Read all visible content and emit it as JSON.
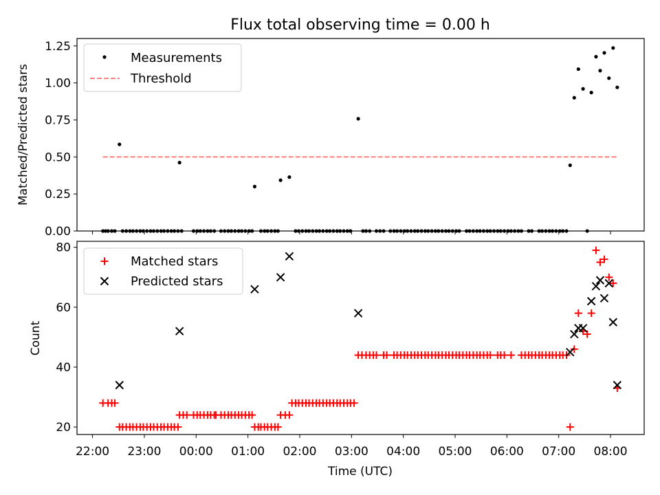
{
  "figure": {
    "title": "Flux total observing time = 0.00 h"
  },
  "chart_data": [
    {
      "type": "scatter",
      "panel": "top",
      "ylabel": "Matched/Predicted stars",
      "ylim": [
        0.0,
        1.3
      ],
      "yticks": [
        "0.00",
        "0.25",
        "0.50",
        "0.75",
        "1.00",
        "1.25"
      ],
      "grid": false,
      "legend_position": "top-left",
      "threshold": {
        "name": "Threshold",
        "y": 0.5,
        "x_start": 22.2,
        "x_end": 32.15,
        "color": "#ff7f7f",
        "style": "dashed"
      },
      "series": [
        {
          "name": "Measurements",
          "marker": "dot",
          "color": "#000000",
          "x_zero": [
            22.2,
            22.25,
            22.3,
            22.37,
            22.43,
            22.58,
            22.65,
            22.72,
            22.78,
            22.85,
            22.92,
            22.98,
            23.05,
            23.12,
            23.18,
            23.25,
            23.32,
            23.38,
            23.45,
            23.52,
            23.58,
            23.65,
            23.72,
            23.95,
            24.02,
            24.08,
            24.15,
            24.22,
            24.28,
            24.35,
            24.48,
            24.55,
            24.62,
            24.68,
            24.75,
            24.82,
            24.88,
            24.95,
            25.02,
            25.08,
            25.25,
            25.32,
            25.38,
            25.45,
            25.52,
            25.58,
            25.92,
            25.98,
            26.05,
            26.12,
            26.18,
            26.25,
            26.32,
            26.38,
            26.45,
            26.52,
            26.58,
            26.65,
            26.72,
            26.78,
            26.85,
            26.92,
            26.98,
            27.22,
            27.28,
            27.35,
            27.48,
            27.55,
            27.62,
            27.75,
            27.82,
            27.88,
            27.95,
            28.02,
            28.08,
            28.15,
            28.22,
            28.28,
            28.35,
            28.42,
            28.48,
            28.55,
            28.62,
            28.68,
            28.75,
            28.82,
            28.88,
            28.95,
            29.02,
            29.08,
            29.22,
            29.28,
            29.35,
            29.42,
            29.48,
            29.55,
            29.62,
            29.68,
            29.75,
            29.82,
            29.88,
            29.95,
            30.02,
            30.08,
            30.15,
            30.22,
            30.28,
            30.42,
            30.48,
            30.62,
            30.68,
            30.75,
            30.82,
            30.88,
            30.95,
            31.02,
            31.08,
            31.15,
            31.55
          ],
          "points": [
            {
              "x": 22.52,
              "y": 0.585
            },
            {
              "x": 23.68,
              "y": 0.462
            },
            {
              "x": 25.13,
              "y": 0.3
            },
            {
              "x": 25.63,
              "y": 0.343
            },
            {
              "x": 25.8,
              "y": 0.364
            },
            {
              "x": 27.13,
              "y": 0.758
            },
            {
              "x": 31.22,
              "y": 0.444
            },
            {
              "x": 31.3,
              "y": 0.9
            },
            {
              "x": 31.38,
              "y": 1.093
            },
            {
              "x": 31.47,
              "y": 0.96
            },
            {
              "x": 31.63,
              "y": 0.935
            },
            {
              "x": 31.72,
              "y": 1.177
            },
            {
              "x": 31.8,
              "y": 1.083
            },
            {
              "x": 31.88,
              "y": 1.203
            },
            {
              "x": 31.97,
              "y": 1.032
            },
            {
              "x": 32.05,
              "y": 1.236
            },
            {
              "x": 32.13,
              "y": 0.97
            }
          ]
        }
      ]
    },
    {
      "type": "scatter",
      "panel": "bottom",
      "xlabel": "Time (UTC)",
      "ylabel": "Count",
      "ylim": [
        17.5,
        82
      ],
      "yticks": [
        "20",
        "40",
        "60",
        "80"
      ],
      "xlim": [
        21.7,
        32.65
      ],
      "xticks": [
        {
          "x": 22,
          "label": "22:00"
        },
        {
          "x": 23,
          "label": "23:00"
        },
        {
          "x": 24,
          "label": "00:00"
        },
        {
          "x": 25,
          "label": "01:00"
        },
        {
          "x": 26,
          "label": "02:00"
        },
        {
          "x": 27,
          "label": "03:00"
        },
        {
          "x": 28,
          "label": "04:00"
        },
        {
          "x": 29,
          "label": "05:00"
        },
        {
          "x": 30,
          "label": "06:00"
        },
        {
          "x": 31,
          "label": "07:00"
        },
        {
          "x": 32,
          "label": "08:00"
        }
      ],
      "grid": false,
      "legend_position": "top-left",
      "series": [
        {
          "name": "Matched stars",
          "marker": "plus",
          "color": "#ff0000",
          "runs": [
            {
              "value": 28,
              "x": [
                22.2,
                22.3,
                22.37,
                22.43
              ]
            },
            {
              "value": 20,
              "x": [
                22.52,
                22.58,
                22.65,
                22.72,
                22.78,
                22.85,
                22.92,
                22.98,
                23.05,
                23.12,
                23.18,
                23.25,
                23.32,
                23.38,
                23.45,
                23.52,
                23.58,
                23.65
              ]
            },
            {
              "value": 24,
              "x": [
                23.68,
                23.75,
                23.82,
                23.95,
                24.02,
                24.08,
                24.15,
                24.22,
                24.28,
                24.35,
                24.38,
                24.48,
                24.55,
                24.62,
                24.68,
                24.75,
                24.82,
                24.88,
                24.95,
                25.02,
                25.08
              ]
            },
            {
              "value": 20,
              "x": [
                25.13,
                25.2,
                25.25,
                25.32,
                25.38,
                25.45,
                25.52,
                25.58
              ]
            },
            {
              "value": 24,
              "x": [
                25.63,
                25.72,
                25.8
              ]
            },
            {
              "value": 28,
              "x": [
                25.85,
                25.92,
                25.98,
                26.05,
                26.12,
                26.18,
                26.25,
                26.32,
                26.38,
                26.45,
                26.52,
                26.58,
                26.65,
                26.72,
                26.78,
                26.85,
                26.92,
                26.98,
                27.05
              ]
            },
            {
              "value": 44,
              "x": [
                27.13,
                27.2,
                27.28,
                27.35,
                27.42,
                27.48,
                27.62,
                27.68,
                27.82,
                27.88,
                27.95,
                28.02,
                28.08,
                28.15,
                28.22,
                28.28,
                28.35,
                28.42,
                28.48,
                28.55,
                28.62,
                28.68,
                28.75,
                28.82,
                28.88,
                28.95,
                29.02,
                29.08,
                29.15,
                29.22,
                29.28,
                29.35,
                29.42,
                29.48,
                29.55,
                29.62,
                29.68,
                29.82,
                29.88,
                29.95,
                30.08,
                30.28,
                30.35,
                30.42,
                30.48,
                30.55,
                30.62,
                30.68,
                30.75,
                30.82,
                30.88,
                30.95,
                31.02,
                31.08,
                31.15
              ]
            }
          ],
          "points": [
            {
              "x": 31.22,
              "y": 20
            },
            {
              "x": 31.3,
              "y": 46
            },
            {
              "x": 31.38,
              "y": 58
            },
            {
              "x": 31.47,
              "y": 52
            },
            {
              "x": 31.55,
              "y": 51
            },
            {
              "x": 31.63,
              "y": 58
            },
            {
              "x": 31.72,
              "y": 79
            },
            {
              "x": 31.8,
              "y": 75
            },
            {
              "x": 31.88,
              "y": 76
            },
            {
              "x": 31.97,
              "y": 70
            },
            {
              "x": 32.05,
              "y": 68
            },
            {
              "x": 32.13,
              "y": 33
            }
          ]
        },
        {
          "name": "Predicted stars",
          "marker": "x",
          "color": "#000000",
          "points": [
            {
              "x": 22.52,
              "y": 34
            },
            {
              "x": 23.68,
              "y": 52
            },
            {
              "x": 25.13,
              "y": 66
            },
            {
              "x": 25.63,
              "y": 70
            },
            {
              "x": 25.8,
              "y": 77
            },
            {
              "x": 27.13,
              "y": 58
            },
            {
              "x": 31.22,
              "y": 45
            },
            {
              "x": 31.3,
              "y": 51
            },
            {
              "x": 31.38,
              "y": 53
            },
            {
              "x": 31.47,
              "y": 53
            },
            {
              "x": 31.63,
              "y": 62
            },
            {
              "x": 31.72,
              "y": 67
            },
            {
              "x": 31.8,
              "y": 69
            },
            {
              "x": 31.88,
              "y": 63
            },
            {
              "x": 31.97,
              "y": 68
            },
            {
              "x": 32.05,
              "y": 55
            },
            {
              "x": 32.13,
              "y": 34
            }
          ]
        }
      ]
    }
  ]
}
